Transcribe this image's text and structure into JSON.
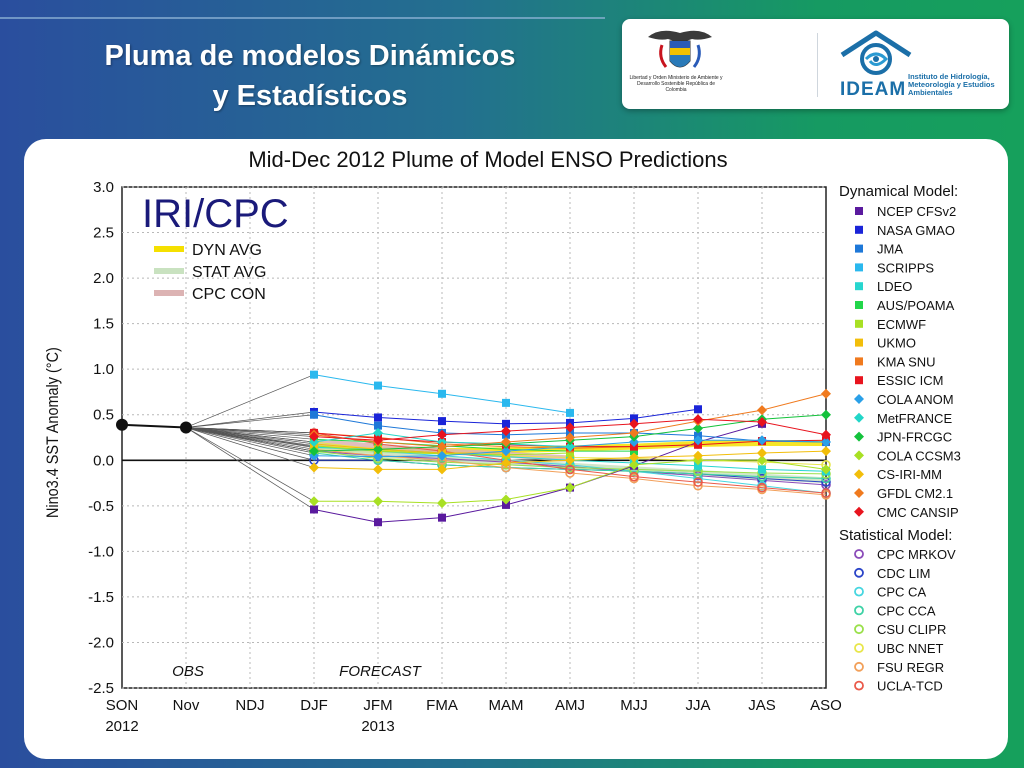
{
  "slide": {
    "title_line1": "Pluma de modelos Dinámicos",
    "title_line2": "y Estadísticos"
  },
  "logos": {
    "left_seal_text": "Libertad y Orden\nMinisterio de Ambiente y Desarrollo Sostenible\nRepública de Colombia",
    "ideam_word": "IDEAM",
    "ideam_desc": "Instituto de Hidrología, Meteorología y Estudios Ambientales"
  },
  "colors": {
    "ideam_blue": "#1b6fa8",
    "bg_left": "#2a4e9e",
    "bg_right": "#16a05c"
  },
  "chart_data": {
    "type": "line",
    "title": "Mid-Dec 2012 Plume of Model ENSO Predictions",
    "ylabel": "Nino3.4 SST Anomaly (°C)",
    "xlabel": "",
    "ylim": [
      -2.5,
      3.0
    ],
    "yticks": [
      3.0,
      2.5,
      2.0,
      1.5,
      1.0,
      0.5,
      0.0,
      -0.5,
      -1.0,
      -1.5,
      -2.0,
      -2.5
    ],
    "ytick_labels": [
      "3.0",
      "2.5",
      "2.0",
      "1.5",
      "1.0",
      "0.5",
      "0.0",
      "-0.5",
      "-1.0",
      "-1.5",
      "-2.0",
      "-2.5"
    ],
    "categories": [
      "SON",
      "Nov",
      "NDJ",
      "DJF",
      "JFM",
      "FMA",
      "MAM",
      "AMJ",
      "MJJ",
      "JJA",
      "JAS",
      "ASO"
    ],
    "year_labels": [
      {
        "cat": 0,
        "text": "2012"
      },
      {
        "cat": 4,
        "text": "2013"
      }
    ],
    "grid": true,
    "badge": "IRI/CPC",
    "region_labels": {
      "obs": "OBS",
      "forecast": "FORECAST"
    },
    "avg_legend": [
      {
        "name": "DYN AVG",
        "color": "#f5e000"
      },
      {
        "name": "STAT AVG",
        "color": "#c9e2c0"
      },
      {
        "name": "CPC CON",
        "color": "#dcb3b3"
      }
    ],
    "obs": {
      "x": [
        0,
        1
      ],
      "values": [
        0.39,
        0.36
      ]
    },
    "dynamical_header": "Dynamical Model:",
    "statistical_header": "Statistical Model:",
    "dynamical_models": [
      {
        "name": "NCEP CFSv2",
        "color": "#5a1a9e",
        "marker": "square",
        "values": [
          -0.54,
          -0.68,
          -0.63,
          -0.49,
          -0.3,
          -0.06,
          0.2,
          0.4,
          null
        ]
      },
      {
        "name": "NASA GMAO",
        "color": "#1a24d8",
        "marker": "square",
        "values": [
          0.53,
          0.47,
          0.43,
          0.4,
          0.41,
          0.46,
          0.56,
          null,
          null
        ]
      },
      {
        "name": "JMA",
        "color": "#1e78d8",
        "marker": "square",
        "values": [
          0.5,
          0.38,
          0.3,
          0.28,
          0.3,
          0.3,
          0.27,
          0.21,
          0.2
        ]
      },
      {
        "name": "SCRIPPS",
        "color": "#2ab8ee",
        "marker": "square",
        "values": [
          0.94,
          0.82,
          0.73,
          0.63,
          0.52,
          null,
          null,
          null,
          null
        ]
      },
      {
        "name": "LDEO",
        "color": "#27d6cf",
        "marker": "square",
        "values": [
          0.14,
          0.12,
          0.08,
          0.04,
          0.0,
          -0.03,
          -0.06,
          -0.1,
          -0.12
        ]
      },
      {
        "name": "AUS/POAMA",
        "color": "#22d64a",
        "marker": "square",
        "values": [
          0.23,
          0.2,
          0.16,
          0.12,
          0.1,
          0.1,
          null,
          null,
          null
        ]
      },
      {
        "name": "ECMWF",
        "color": "#a8e024",
        "marker": "square",
        "values": [
          0.16,
          0.1,
          0.07,
          0.06,
          0.08,
          null,
          null,
          null,
          null
        ]
      },
      {
        "name": "UKMO",
        "color": "#f2be0a",
        "marker": "square",
        "values": [
          0.18,
          0.12,
          0.08,
          0.08,
          null,
          null,
          null,
          null,
          null
        ]
      },
      {
        "name": "KMA SNU",
        "color": "#f07a1e",
        "marker": "square",
        "values": [
          0.3,
          0.25,
          0.18,
          0.15,
          0.13,
          0.15,
          null,
          null,
          null
        ]
      },
      {
        "name": "ESSIC ICM",
        "color": "#e8141e",
        "marker": "square",
        "values": [
          0.3,
          0.24,
          0.2,
          0.17,
          0.15,
          0.15,
          0.17,
          0.21,
          0.22
        ]
      },
      {
        "name": "COLA ANOM",
        "color": "#2aa0e8",
        "marker": "diamond",
        "values": [
          0.05,
          0.04,
          0.05,
          0.1,
          0.15,
          0.2,
          0.22,
          0.22,
          0.2
        ]
      },
      {
        "name": "MetFRANCE",
        "color": "#22d6c8",
        "marker": "diamond",
        "values": [
          0.2,
          0.3,
          0.2,
          0.18,
          0.15,
          null,
          null,
          null,
          null
        ]
      },
      {
        "name": "JPN-FRCGC",
        "color": "#14c23c",
        "marker": "diamond",
        "values": [
          0.1,
          0.12,
          0.15,
          0.18,
          0.22,
          0.26,
          0.35,
          0.45,
          0.5
        ]
      },
      {
        "name": "COLA CCSM3",
        "color": "#a8e024",
        "marker": "diamond",
        "values": [
          -0.45,
          -0.45,
          -0.47,
          -0.43,
          -0.3,
          -0.05,
          0.0,
          0.0,
          -0.1
        ]
      },
      {
        "name": "CS-IRI-MM",
        "color": "#f2be0a",
        "marker": "diamond",
        "values": [
          -0.08,
          -0.1,
          -0.1,
          -0.03,
          0.0,
          0.03,
          0.05,
          0.08,
          0.1
        ]
      },
      {
        "name": "GFDL CM2.1",
        "color": "#f07a1e",
        "marker": "diamond",
        "values": [
          0.28,
          0.2,
          0.15,
          0.2,
          0.25,
          0.3,
          0.43,
          0.55,
          0.73
        ]
      },
      {
        "name": "CMC CANSIP",
        "color": "#e8141e",
        "marker": "diamond",
        "values": [
          0.26,
          0.22,
          0.28,
          0.32,
          0.36,
          0.4,
          0.45,
          0.42,
          0.28
        ]
      }
    ],
    "statistical_models": [
      {
        "name": "CPC MRKOV",
        "color": "#8a4ab8",
        "marker": "circle",
        "values": [
          0.1,
          0.05,
          0.02,
          -0.02,
          -0.07,
          -0.12,
          -0.17,
          -0.22,
          -0.27
        ]
      },
      {
        "name": "CDC LIM",
        "color": "#2a44c8",
        "marker": "circle",
        "values": [
          0.0,
          0.0,
          -0.05,
          -0.08,
          -0.1,
          -0.12,
          -0.15,
          -0.2,
          -0.24
        ]
      },
      {
        "name": "CPC CA",
        "color": "#46d6e0",
        "marker": "circle",
        "values": [
          0.15,
          0.1,
          0.05,
          0.0,
          -0.05,
          -0.12,
          -0.2,
          -0.28,
          -0.36
        ]
      },
      {
        "name": "CPC CCA",
        "color": "#3ed2a6",
        "marker": "circle",
        "values": [
          0.08,
          0.0,
          -0.05,
          -0.08,
          -0.1,
          -0.12,
          -0.15,
          -0.18,
          -0.2
        ]
      },
      {
        "name": "CSU CLIPR",
        "color": "#9ae04a",
        "marker": "circle",
        "values": [
          0.1,
          0.02,
          -0.02,
          -0.05,
          -0.08,
          -0.1,
          -0.12,
          -0.14,
          -0.15
        ]
      },
      {
        "name": "UBC NNET",
        "color": "#e8e64a",
        "marker": "circle",
        "values": [
          0.2,
          0.12,
          0.08,
          0.05,
          0.03,
          0.02,
          0.0,
          -0.02,
          -0.05
        ]
      },
      {
        "name": "FSU REGR",
        "color": "#f2a05a",
        "marker": "circle",
        "values": [
          0.12,
          0.05,
          0.0,
          -0.08,
          -0.14,
          -0.2,
          -0.28,
          -0.32,
          -0.38
        ]
      },
      {
        "name": "UCLA-TCD",
        "color": "#ea5a4a",
        "marker": "circle",
        "values": [
          0.3,
          0.18,
          0.1,
          0.0,
          -0.1,
          -0.18,
          -0.24,
          -0.3,
          -0.36
        ]
      }
    ],
    "averages": [
      {
        "name": "DYN AVG",
        "color": "#f5e000",
        "values": [
          0.14,
          0.11,
          0.1,
          0.11,
          0.13,
          0.15,
          0.18,
          0.19,
          0.19
        ]
      },
      {
        "name": "STAT AVG",
        "color": "#c9e2c0",
        "values": [
          0.12,
          0.06,
          0.02,
          -0.02,
          -0.06,
          -0.1,
          -0.14,
          -0.18,
          -0.22
        ]
      },
      {
        "name": "CPC CON",
        "color": "#dcb3b3",
        "values": [
          0.2,
          0.15,
          0.1,
          0.06,
          0.02,
          null,
          null,
          null,
          null
        ]
      }
    ]
  }
}
